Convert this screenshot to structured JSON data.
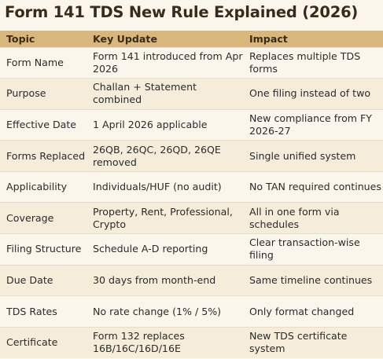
{
  "title": "Form 141 TDS New Rule Explained (2026)",
  "headers": {
    "topic": "Topic",
    "update": "Key Update",
    "impact": "Impact"
  },
  "rows": [
    {
      "topic": "Form Name",
      "update": "Form 141 introduced from Apr 2026",
      "impact": "Replaces multiple TDS forms"
    },
    {
      "topic": "Purpose",
      "update": "Challan + Statement combined",
      "impact": "One filing instead of two"
    },
    {
      "topic": "Effective Date",
      "update": "1 April 2026 applicable",
      "impact": "New compliance from FY 2026-27"
    },
    {
      "topic": "Forms Replaced",
      "update": "26QB, 26QC, 26QD, 26QE removed",
      "impact": "Single unified system"
    },
    {
      "topic": "Applicability",
      "update": "Individuals/HUF (no audit)",
      "impact": "No TAN required continues"
    },
    {
      "topic": "Coverage",
      "update": "Property, Rent, Professional, Crypto",
      "impact": "All in one form via schedules"
    },
    {
      "topic": "Filing Structure",
      "update": "Schedule A-D reporting",
      "impact": "Clear transaction-wise filing"
    },
    {
      "topic": "Due Date",
      "update": "30 days from month-end",
      "impact": "Same timeline continues"
    },
    {
      "topic": "TDS Rates",
      "update": "No rate change (1% / 5%)",
      "impact": "Only format changed"
    },
    {
      "topic": "Certificate",
      "update": "Form 132 replaces 16B/16C/16D/16E",
      "impact": "New TDS certificate system"
    }
  ],
  "colors": {
    "header_bg": "#d9b77c",
    "page_bg": "#fbf6ec",
    "stripe_bg": "#f5ecda",
    "title_color": "#3a2a1a"
  }
}
